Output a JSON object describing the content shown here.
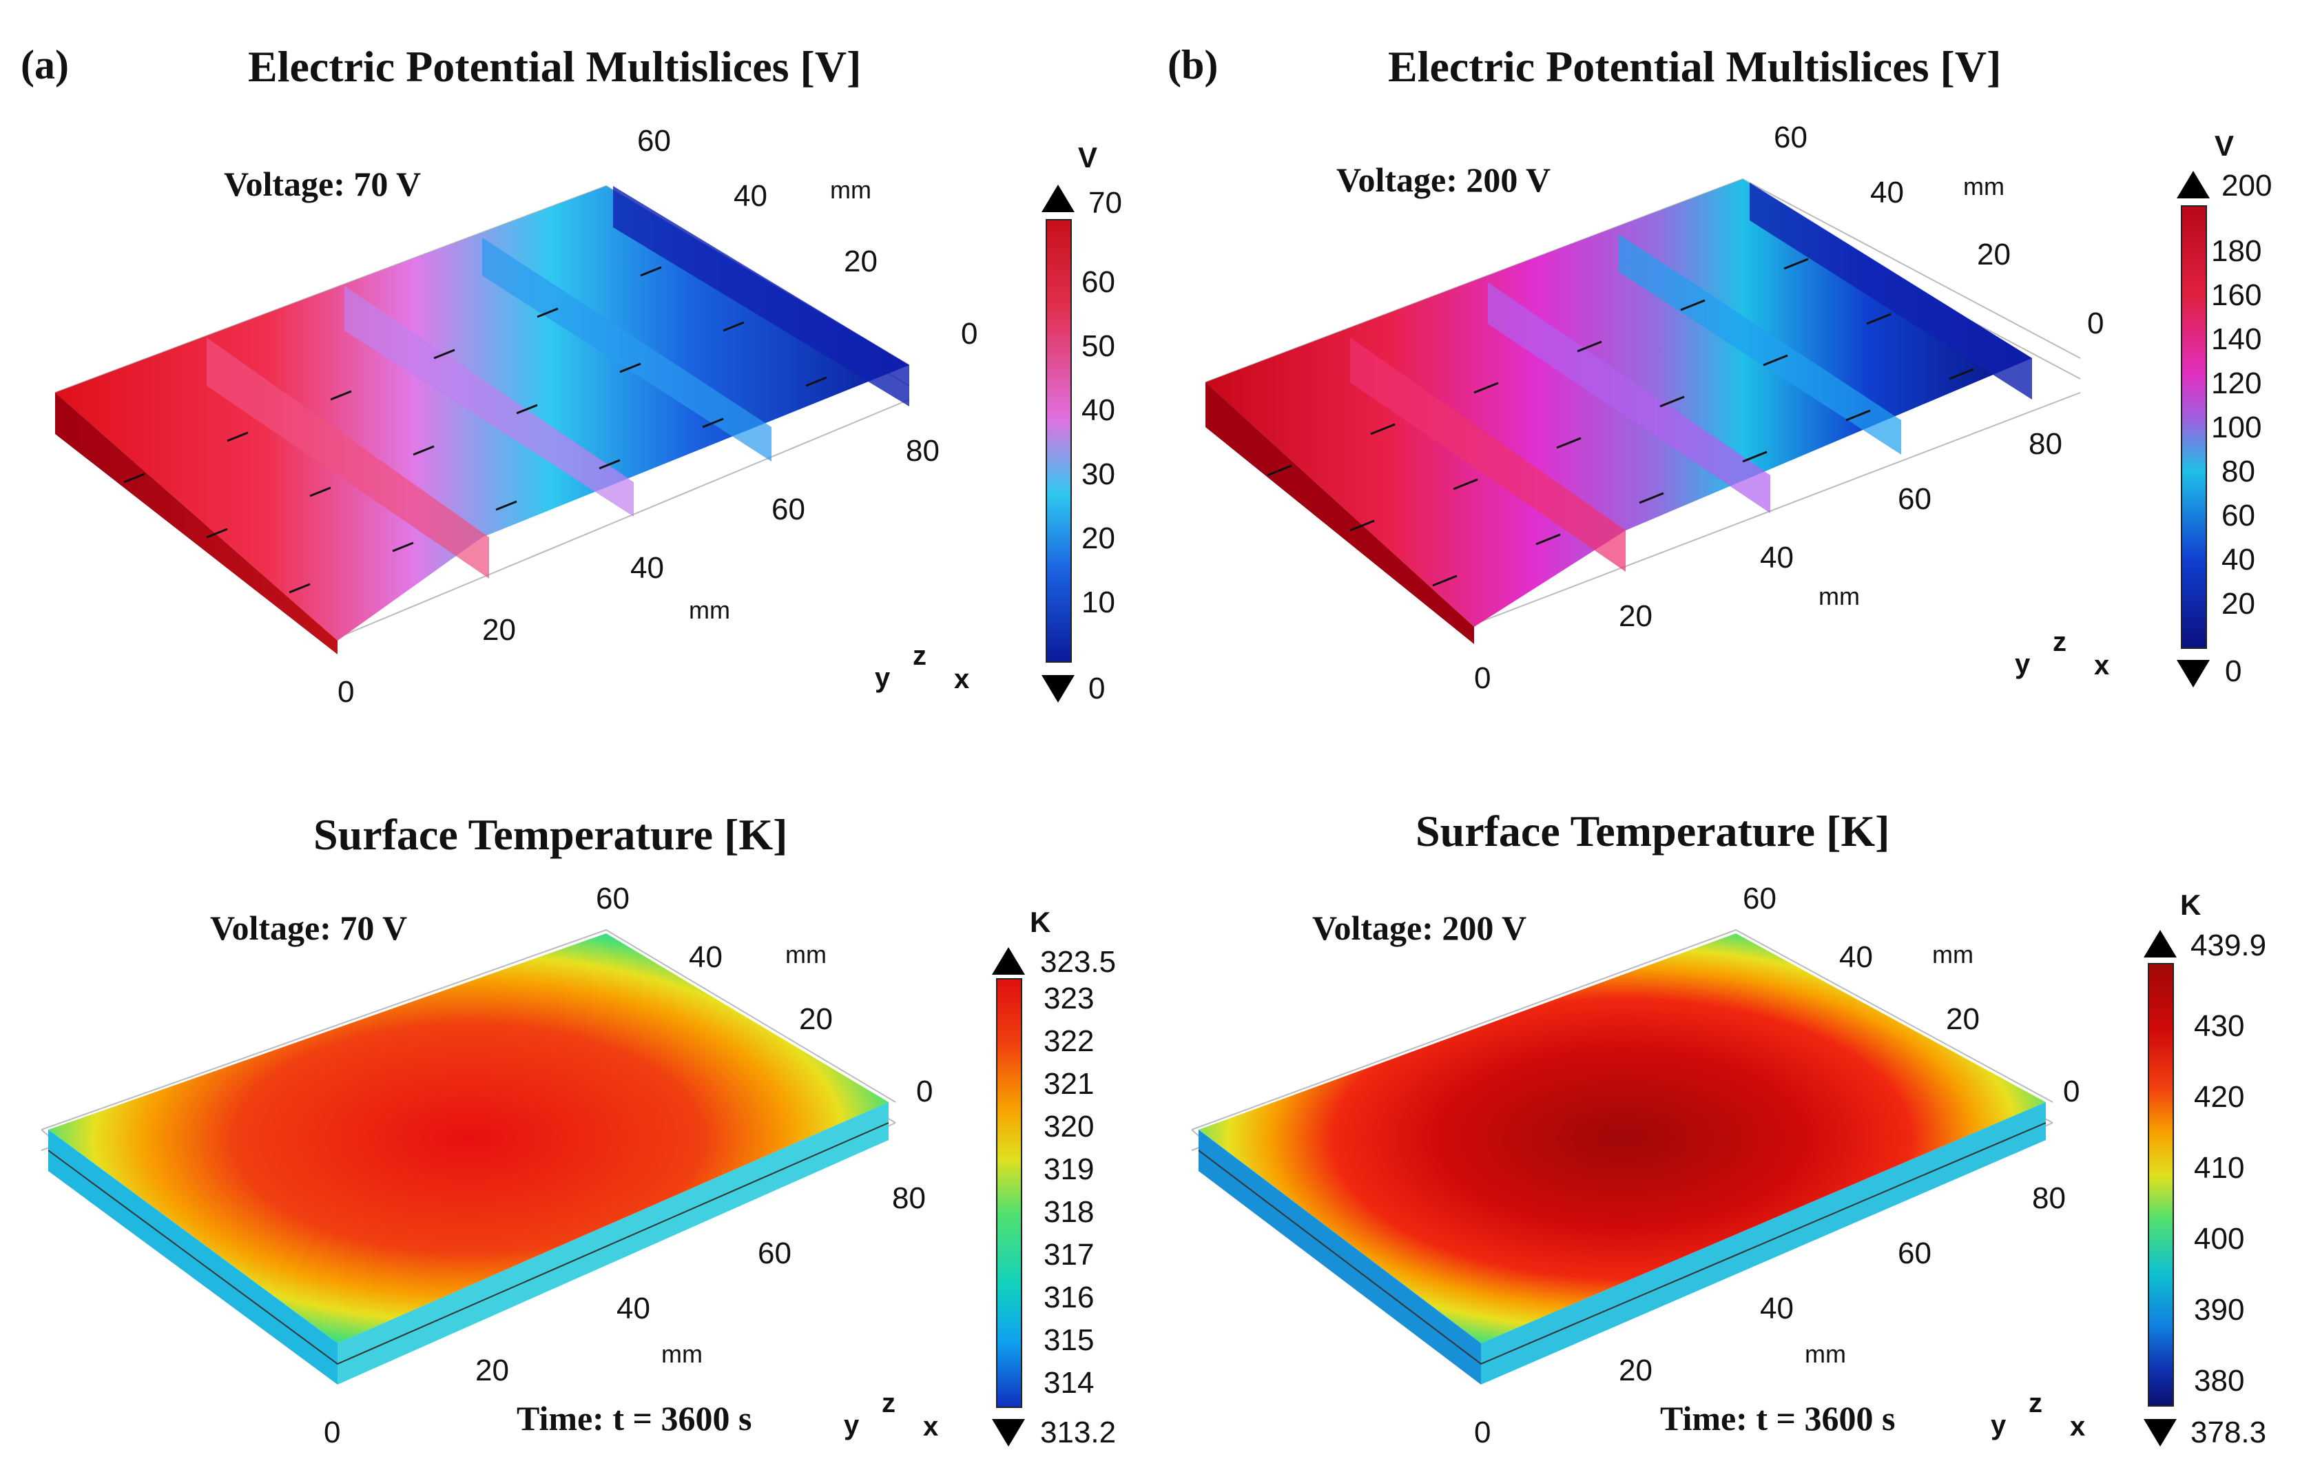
{
  "panels": [
    {
      "label": "(a)",
      "title": "Electric Potential Multislices [V]",
      "note": "Voltage: 70 V",
      "unit": "V",
      "max": "70",
      "min": "0",
      "ticks": [
        "60",
        "50",
        "40",
        "30",
        "20",
        "10"
      ]
    },
    {
      "label": "(b)",
      "title": "Electric Potential Multislices [V]",
      "note": "Voltage: 200 V",
      "unit": "V",
      "max": "200",
      "min": "0",
      "ticks": [
        "180",
        "160",
        "140",
        "120",
        "100",
        "80",
        "60",
        "40",
        "20"
      ]
    },
    {
      "title": "Surface Temperature [K]",
      "note": "Voltage: 70 V",
      "time": "Time: t = 3600 s",
      "unit": "K",
      "max": "323.5",
      "min": "313.2",
      "ticks": [
        "323",
        "322",
        "321",
        "320",
        "319",
        "318",
        "317",
        "316",
        "315",
        "314"
      ]
    },
    {
      "title": "Surface Temperature [K]",
      "note": "Voltage: 200 V",
      "time": "Time: t = 3600 s",
      "unit": "K",
      "max": "439.9",
      "min": "378.3",
      "ticks": [
        "430",
        "420",
        "410",
        "400",
        "390",
        "380"
      ]
    }
  ],
  "axes": {
    "x_ticks": [
      "0",
      "20",
      "40",
      "60",
      "80"
    ],
    "y_ticks": [
      "60",
      "40",
      "20",
      "0"
    ],
    "unit": "mm",
    "triad": [
      "y",
      "z",
      "x"
    ]
  },
  "colors": {
    "potential_high": "#d8101a",
    "potential_mid": "#e070e0",
    "potential_low": "#0a1a9a",
    "temp_hot": "#e01010",
    "temp_warm": "#f8a000",
    "temp_mid": "#60e060",
    "temp_cool": "#10c0e0",
    "temp_cold": "#1030c0"
  }
}
